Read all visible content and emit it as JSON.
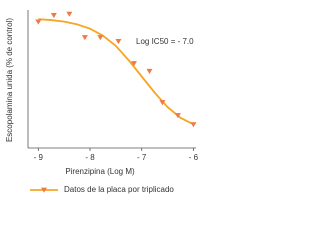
{
  "chart_data": {
    "type": "scatter",
    "x_label": "Pirenzipina (Log M)",
    "y_label": "Escopolamina unida (% de control)",
    "annotation": "Log IC50 = - 7.0",
    "xlim": [
      -9.2,
      -5.95
    ],
    "xticks": [
      {
        "value": -9,
        "label": "- 9"
      },
      {
        "value": -8,
        "label": "- 8"
      },
      {
        "value": -7,
        "label": "- 7"
      },
      {
        "value": -6,
        "label": "- 6"
      }
    ],
    "ylim": [
      0,
      110
    ],
    "series": [
      {
        "name": "Datos de la placa por triplicado",
        "type": "scatter",
        "color": "#ee7a45",
        "line_color": "#f5a623",
        "x": [
          -9.0,
          -8.7,
          -8.4,
          -8.1,
          -7.8,
          -7.45,
          -7.15,
          -6.85,
          -6.6,
          -6.3,
          -6.0
        ],
        "values": [
          97,
          102,
          103,
          85,
          85,
          82,
          65,
          59,
          35,
          25,
          18
        ]
      },
      {
        "type": "line",
        "color": "#f5a623",
        "x": [
          -9.0,
          -8.75,
          -8.5,
          -8.25,
          -8.0,
          -7.75,
          -7.5,
          -7.25,
          -7.0,
          -6.75,
          -6.5,
          -6.25,
          -6.0
        ],
        "values": [
          99.1,
          98.4,
          97.2,
          95.1,
          91.8,
          86.4,
          78.5,
          67.4,
          55.0,
          42.6,
          31.5,
          23.2,
          18.2
        ]
      }
    ]
  }
}
